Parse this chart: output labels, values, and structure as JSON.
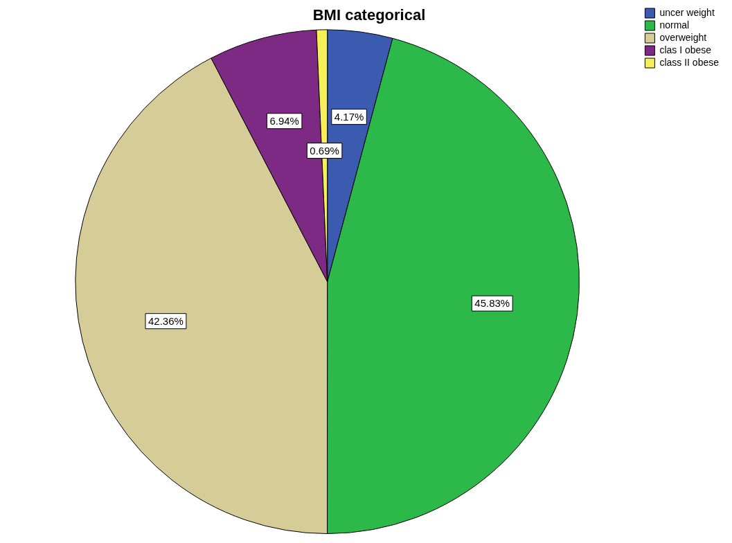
{
  "chart_data": {
    "type": "pie",
    "title": "BMI categorical",
    "categories": [
      "uncer weight",
      "normal",
      "overweight",
      "clas I obese",
      "class II obese"
    ],
    "values": [
      4.17,
      45.83,
      42.36,
      6.94,
      0.69
    ],
    "colors": [
      "#3a5bb0",
      "#2db84a",
      "#d5cc98",
      "#7d2a84",
      "#f5ef5a"
    ],
    "value_labels": [
      "4.17%",
      "45.83%",
      "42.36%",
      "6.94%",
      "0.69%"
    ],
    "legend": "top right"
  }
}
